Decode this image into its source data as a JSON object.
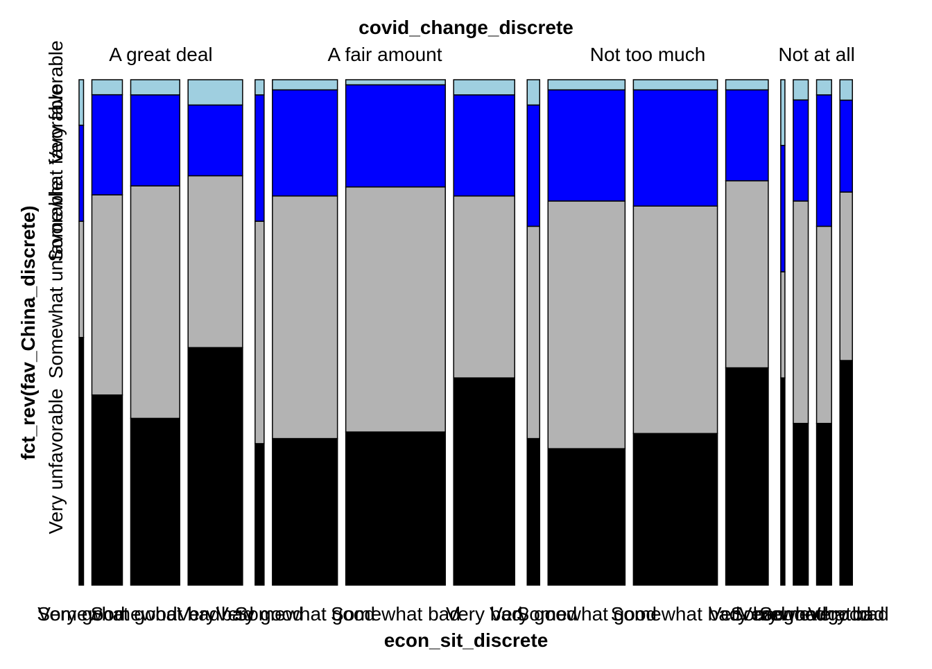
{
  "chart_data": {
    "type": "mosaic",
    "title_top": "covid_change_discrete",
    "xlabel": "econ_sit_discrete",
    "ylabel": "fct_rev(fav_China_discrete)",
    "y_categories": [
      "Very unfavorable",
      "Somewhat unfavorable",
      "Somewhat favorable",
      "Very favorable"
    ],
    "y_colors": [
      "#000000",
      "#b3b3b3",
      "#0000ff",
      "#9fcfe0"
    ],
    "panels": [
      {
        "label": "A great deal",
        "bars": [
          {
            "label": "Very good",
            "width": 0.009,
            "props": [
              0.49,
              0.23,
              0.19,
              0.09
            ]
          },
          {
            "label": "Somewhat good",
            "width": 0.061,
            "props": [
              0.38,
              0.4,
              0.2,
              0.03
            ]
          },
          {
            "label": "Somewhat bad",
            "width": 0.098,
            "props": [
              0.33,
              0.46,
              0.18,
              0.03
            ]
          },
          {
            "label": "Very bad",
            "width": 0.109,
            "props": [
              0.47,
              0.34,
              0.14,
              0.05
            ]
          }
        ]
      },
      {
        "label": "A fair amount",
        "bars": [
          {
            "label": "Very good",
            "width": 0.018,
            "props": [
              0.28,
              0.44,
              0.25,
              0.03
            ]
          },
          {
            "label": "Somewhat good",
            "width": 0.13,
            "props": [
              0.29,
              0.48,
              0.21,
              0.02
            ]
          },
          {
            "label": "Somewhat bad",
            "width": 0.199,
            "props": [
              0.3,
              0.48,
              0.2,
              0.01
            ]
          },
          {
            "label": "Very bad",
            "width": 0.122,
            "props": [
              0.41,
              0.36,
              0.2,
              0.03
            ]
          }
        ]
      },
      {
        "label": "Not too much",
        "bars": [
          {
            "label": "Very good",
            "width": 0.025,
            "props": [
              0.29,
              0.42,
              0.24,
              0.05
            ]
          },
          {
            "label": "Somewhat good",
            "width": 0.154,
            "props": [
              0.27,
              0.49,
              0.22,
              0.02
            ]
          },
          {
            "label": "Somewhat bad",
            "width": 0.168,
            "props": [
              0.3,
              0.45,
              0.23,
              0.02
            ]
          },
          {
            "label": "Very bad",
            "width": 0.085,
            "props": [
              0.43,
              0.37,
              0.18,
              0.02
            ]
          }
        ]
      },
      {
        "label": "Not at all",
        "bars": [
          {
            "label": "Very good",
            "width": 0.008,
            "props": [
              0.41,
              0.21,
              0.25,
              0.13
            ]
          },
          {
            "label": "Somewhat good",
            "width": 0.03,
            "props": [
              0.32,
              0.44,
              0.2,
              0.04
            ]
          },
          {
            "label": "Somewhat bad",
            "width": 0.03,
            "props": [
              0.32,
              0.39,
              0.26,
              0.03
            ]
          },
          {
            "label": "Very bad",
            "width": 0.025,
            "props": [
              0.44,
              0.33,
              0.18,
              0.04
            ]
          }
        ]
      }
    ]
  }
}
